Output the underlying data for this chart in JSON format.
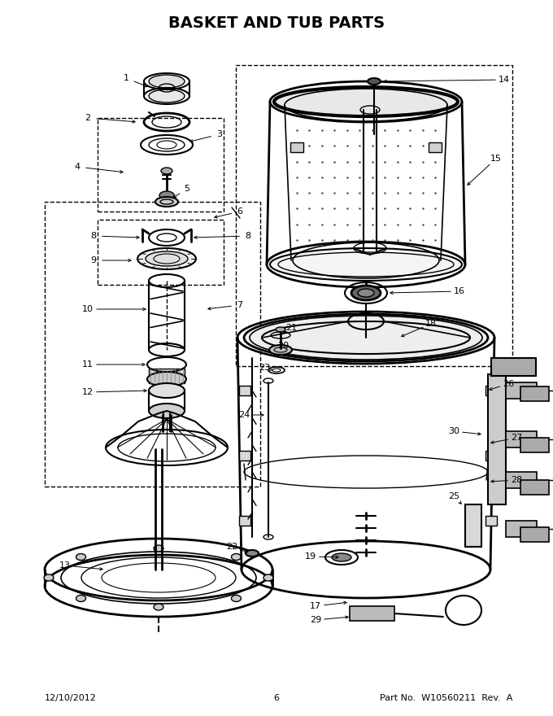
{
  "title": "BASKET AND TUB PARTS",
  "title_fontsize": 14,
  "title_fontweight": "bold",
  "footer_left": "12/10/2012",
  "footer_center": "6",
  "footer_right": "Part No.  W10560211  Rev.  A",
  "footer_fontsize": 8,
  "bg_color": "#ffffff",
  "line_color": "#000000",
  "label_fontsize": 8,
  "figw": 6.8,
  "figh": 8.8,
  "dpi": 100
}
